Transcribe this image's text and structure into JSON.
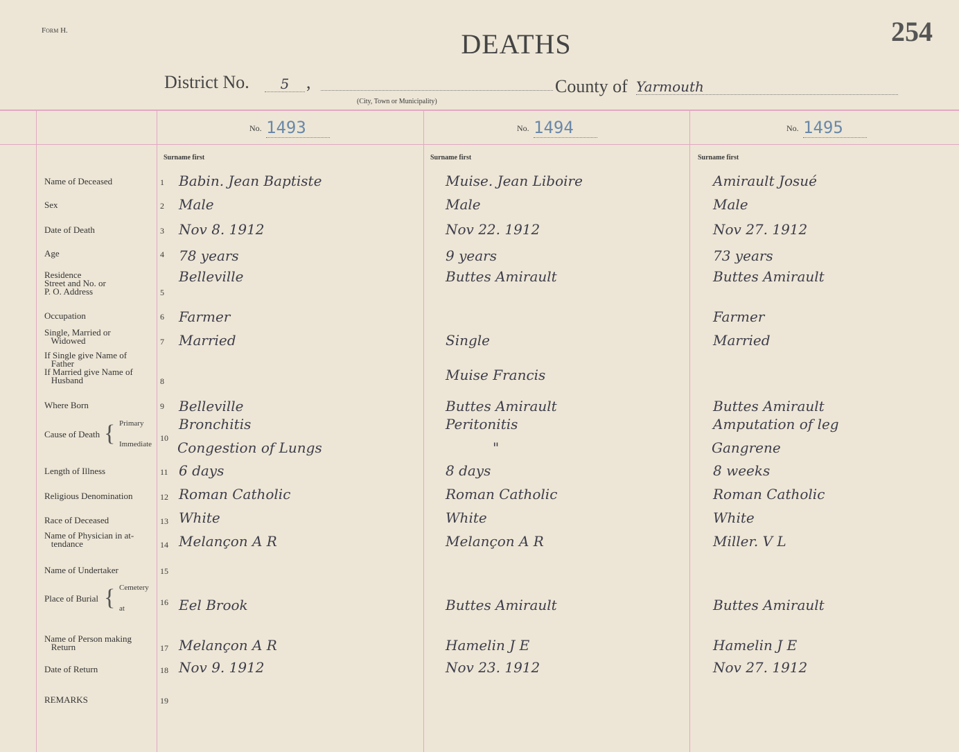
{
  "header": {
    "form": "Form H.",
    "title": "DEATHS",
    "page_number": "254",
    "district_label": "District No.",
    "district_value": "5",
    "municipality_caption": "(City, Town or Municipality)",
    "county_label": "County of",
    "county_value": "Yarmouth"
  },
  "columns": [
    {
      "no_label": "No.",
      "number": "1493",
      "surname_caption": "Surname first"
    },
    {
      "no_label": "No.",
      "number": "1494",
      "surname_caption": "Surname first"
    },
    {
      "no_label": "No.",
      "number": "1495",
      "surname_caption": "Surname first"
    }
  ],
  "rows": [
    {
      "n": "1",
      "label": "Name of Deceased",
      "values": [
        "Babin. Jean Baptiste",
        "Muise. Jean Liboire",
        "Amirault Josué"
      ]
    },
    {
      "n": "2",
      "label": "Sex",
      "values": [
        "Male",
        "Male",
        "Male"
      ]
    },
    {
      "n": "3",
      "label": "Date of Death",
      "values": [
        "Nov 8. 1912",
        "Nov 22. 1912",
        "Nov 27. 1912"
      ]
    },
    {
      "n": "4",
      "label": "Age",
      "values": [
        "78 years",
        "9 years",
        "73 years"
      ]
    },
    {
      "n": "5",
      "label": "Residence\nStreet and No. or\nP. O. Address",
      "values": [
        "Belleville",
        "Buttes Amirault",
        "Buttes Amirault"
      ]
    },
    {
      "n": "6",
      "label": "Occupation",
      "values": [
        "Farmer",
        "",
        "Farmer"
      ]
    },
    {
      "n": "7",
      "label": "Single, Married or\n   Widowed",
      "values": [
        "Married",
        "Single",
        "Married"
      ]
    },
    {
      "n": "8",
      "label": "If Single give Name of\n   Father\nIf Married give Name of\n   Husband",
      "values": [
        "",
        "Muise Francis",
        ""
      ]
    },
    {
      "n": "9",
      "label": "Where Born",
      "values": [
        "Belleville",
        "Buttes Amirault",
        "Buttes Amirault"
      ]
    },
    {
      "n": "10",
      "label": "Cause of Death",
      "sub": [
        "Primary",
        "Immediate"
      ],
      "values": [
        "Bronchitis",
        "Peritonitis",
        "Amputation of leg"
      ],
      "values2": [
        "Congestion of Lungs",
        "\"",
        "Gangrene"
      ]
    },
    {
      "n": "11",
      "label": "Length of Illness",
      "values": [
        "6 days",
        "8 days",
        "8 weeks"
      ]
    },
    {
      "n": "12",
      "label": "Religious Denomination",
      "values": [
        "Roman Catholic",
        "Roman Catholic",
        "Roman Catholic"
      ]
    },
    {
      "n": "13",
      "label": "Race of Deceased",
      "values": [
        "White",
        "White",
        "White"
      ]
    },
    {
      "n": "14",
      "label": "Name of Physician in at-\n   tendance",
      "values": [
        "Melançon A R",
        "Melançon A R",
        "Miller. V L"
      ]
    },
    {
      "n": "15",
      "label": "Name of Undertaker",
      "values": [
        "",
        "",
        ""
      ]
    },
    {
      "n": "16",
      "label": "Place of Burial",
      "sub": [
        "Cemetery",
        "at"
      ],
      "values": [
        "Eel Brook",
        "Buttes Amirault",
        "Buttes Amirault"
      ]
    },
    {
      "n": "17",
      "label": "Name of Person making\n   Return",
      "values": [
        "Melançon A R",
        "Hamelin J E",
        "Hamelin J E"
      ]
    },
    {
      "n": "18",
      "label": "Date of Return",
      "values": [
        "Nov 9. 1912",
        "Nov 23. 1912",
        "Nov 27. 1912"
      ]
    },
    {
      "n": "19",
      "label": "REMARKS",
      "values": [
        "",
        "",
        ""
      ]
    }
  ]
}
